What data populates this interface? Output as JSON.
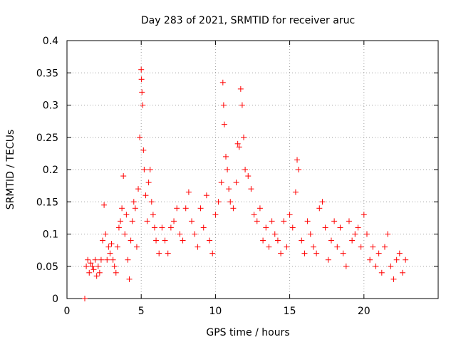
{
  "chart_data": {
    "type": "scatter",
    "title": "Day 283 of 2021, SRMTID for receiver aruc",
    "xlabel": "GPS time / hours",
    "ylabel": "SRMTID / TECUs",
    "xlim": [
      0,
      25
    ],
    "ylim": [
      0,
      0.4
    ],
    "x_ticks": [
      0,
      5,
      10,
      15,
      20
    ],
    "x_tick_labels": [
      "0",
      "5",
      "10",
      "15",
      "20"
    ],
    "y_ticks": [
      0,
      0.05,
      0.1,
      0.15,
      0.2,
      0.25,
      0.3,
      0.35,
      0.4
    ],
    "y_tick_labels": [
      "0",
      "0.05",
      "0.1",
      "0.15",
      "0.2",
      "0.25",
      "0.3",
      "0.35",
      "0.4"
    ],
    "grid": true,
    "marker": "plus",
    "marker_color": "#ff0000",
    "series": [
      {
        "name": "SRMTID",
        "x": [
          1.2,
          1.3,
          1.4,
          1.5,
          1.6,
          1.7,
          1.8,
          1.9,
          2.0,
          2.1,
          2.2,
          2.3,
          2.4,
          2.5,
          2.6,
          2.7,
          2.8,
          2.9,
          3.0,
          3.1,
          3.2,
          3.3,
          3.4,
          3.5,
          3.6,
          3.7,
          3.8,
          3.9,
          4.0,
          4.1,
          4.2,
          4.3,
          4.4,
          4.5,
          4.6,
          4.7,
          4.8,
          4.9,
          5.0,
          5.02,
          5.05,
          5.1,
          5.15,
          5.2,
          5.3,
          5.4,
          5.5,
          5.6,
          5.7,
          5.8,
          5.9,
          6.0,
          6.2,
          6.4,
          6.6,
          6.8,
          7.0,
          7.2,
          7.4,
          7.6,
          7.8,
          8.0,
          8.2,
          8.4,
          8.6,
          8.8,
          9.0,
          9.2,
          9.4,
          9.6,
          9.8,
          10.0,
          10.2,
          10.4,
          10.5,
          10.55,
          10.6,
          10.7,
          10.8,
          10.9,
          11.0,
          11.2,
          11.4,
          11.5,
          11.6,
          11.7,
          11.8,
          11.9,
          12.0,
          12.2,
          12.4,
          12.6,
          12.8,
          13.0,
          13.2,
          13.4,
          13.6,
          13.8,
          14.0,
          14.2,
          14.4,
          14.6,
          14.8,
          15.0,
          15.2,
          15.4,
          15.5,
          15.6,
          15.8,
          16.0,
          16.2,
          16.4,
          16.6,
          16.8,
          17.0,
          17.2,
          17.4,
          17.6,
          17.8,
          18.0,
          18.2,
          18.4,
          18.6,
          18.8,
          19.0,
          19.2,
          19.4,
          19.6,
          19.8,
          20.0,
          20.2,
          20.4,
          20.6,
          20.8,
          21.0,
          21.2,
          21.4,
          21.6,
          21.8,
          22.0,
          22.2,
          22.4,
          22.6,
          22.8
        ],
        "y": [
          0.0,
          0.05,
          0.06,
          0.04,
          0.055,
          0.05,
          0.045,
          0.06,
          0.035,
          0.05,
          0.04,
          0.06,
          0.09,
          0.145,
          0.1,
          0.06,
          0.08,
          0.07,
          0.085,
          0.06,
          0.05,
          0.04,
          0.08,
          0.11,
          0.12,
          0.14,
          0.19,
          0.1,
          0.13,
          0.06,
          0.03,
          0.09,
          0.12,
          0.15,
          0.14,
          0.08,
          0.17,
          0.25,
          0.355,
          0.34,
          0.32,
          0.3,
          0.23,
          0.2,
          0.16,
          0.12,
          0.18,
          0.2,
          0.15,
          0.13,
          0.11,
          0.09,
          0.07,
          0.11,
          0.09,
          0.07,
          0.11,
          0.12,
          0.14,
          0.1,
          0.09,
          0.14,
          0.165,
          0.12,
          0.1,
          0.08,
          0.14,
          0.11,
          0.16,
          0.09,
          0.07,
          0.13,
          0.15,
          0.18,
          0.335,
          0.3,
          0.27,
          0.22,
          0.2,
          0.17,
          0.15,
          0.14,
          0.18,
          0.24,
          0.235,
          0.325,
          0.3,
          0.25,
          0.2,
          0.19,
          0.17,
          0.13,
          0.12,
          0.14,
          0.09,
          0.11,
          0.08,
          0.12,
          0.1,
          0.09,
          0.07,
          0.12,
          0.08,
          0.13,
          0.11,
          0.165,
          0.215,
          0.2,
          0.09,
          0.07,
          0.12,
          0.1,
          0.08,
          0.07,
          0.14,
          0.15,
          0.11,
          0.06,
          0.09,
          0.12,
          0.08,
          0.11,
          0.07,
          0.05,
          0.12,
          0.09,
          0.1,
          0.11,
          0.08,
          0.13,
          0.1,
          0.06,
          0.08,
          0.05,
          0.07,
          0.04,
          0.08,
          0.1,
          0.05,
          0.03,
          0.06,
          0.07,
          0.04,
          0.06
        ]
      }
    ]
  }
}
